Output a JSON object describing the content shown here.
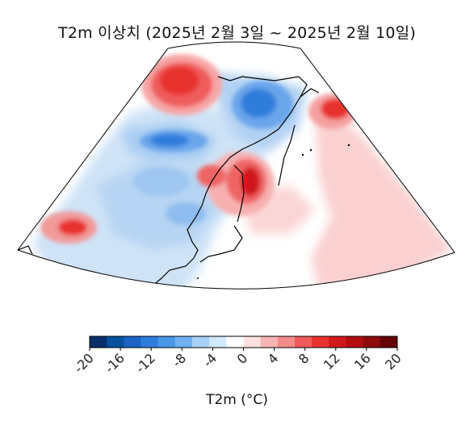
{
  "map": {
    "title": "T2m 이상치 (2025년 2월 3일 ~ 2025년 2월 10일)",
    "projection": "polar sector (Lambert conic style)",
    "region": "East Asia / Northwest Pacific"
  },
  "colorbar": {
    "label": "T2m (°C)",
    "tick_labels": [
      "-20",
      "-16",
      "-12",
      "-8",
      "-4",
      "0",
      "4",
      "8",
      "12",
      "16",
      "20"
    ],
    "colors": [
      "#08306b",
      "#08519c",
      "#1b63c6",
      "#2e7ddb",
      "#4a97e8",
      "#6fb1f2",
      "#a7d0f7",
      "#d2e8fb",
      "#ffffff",
      "#fde0e0",
      "#f8b5b5",
      "#f38b8b",
      "#ef5b5b",
      "#e8322f",
      "#d0191c",
      "#b30d10",
      "#8d0a0d",
      "#650507"
    ]
  }
}
